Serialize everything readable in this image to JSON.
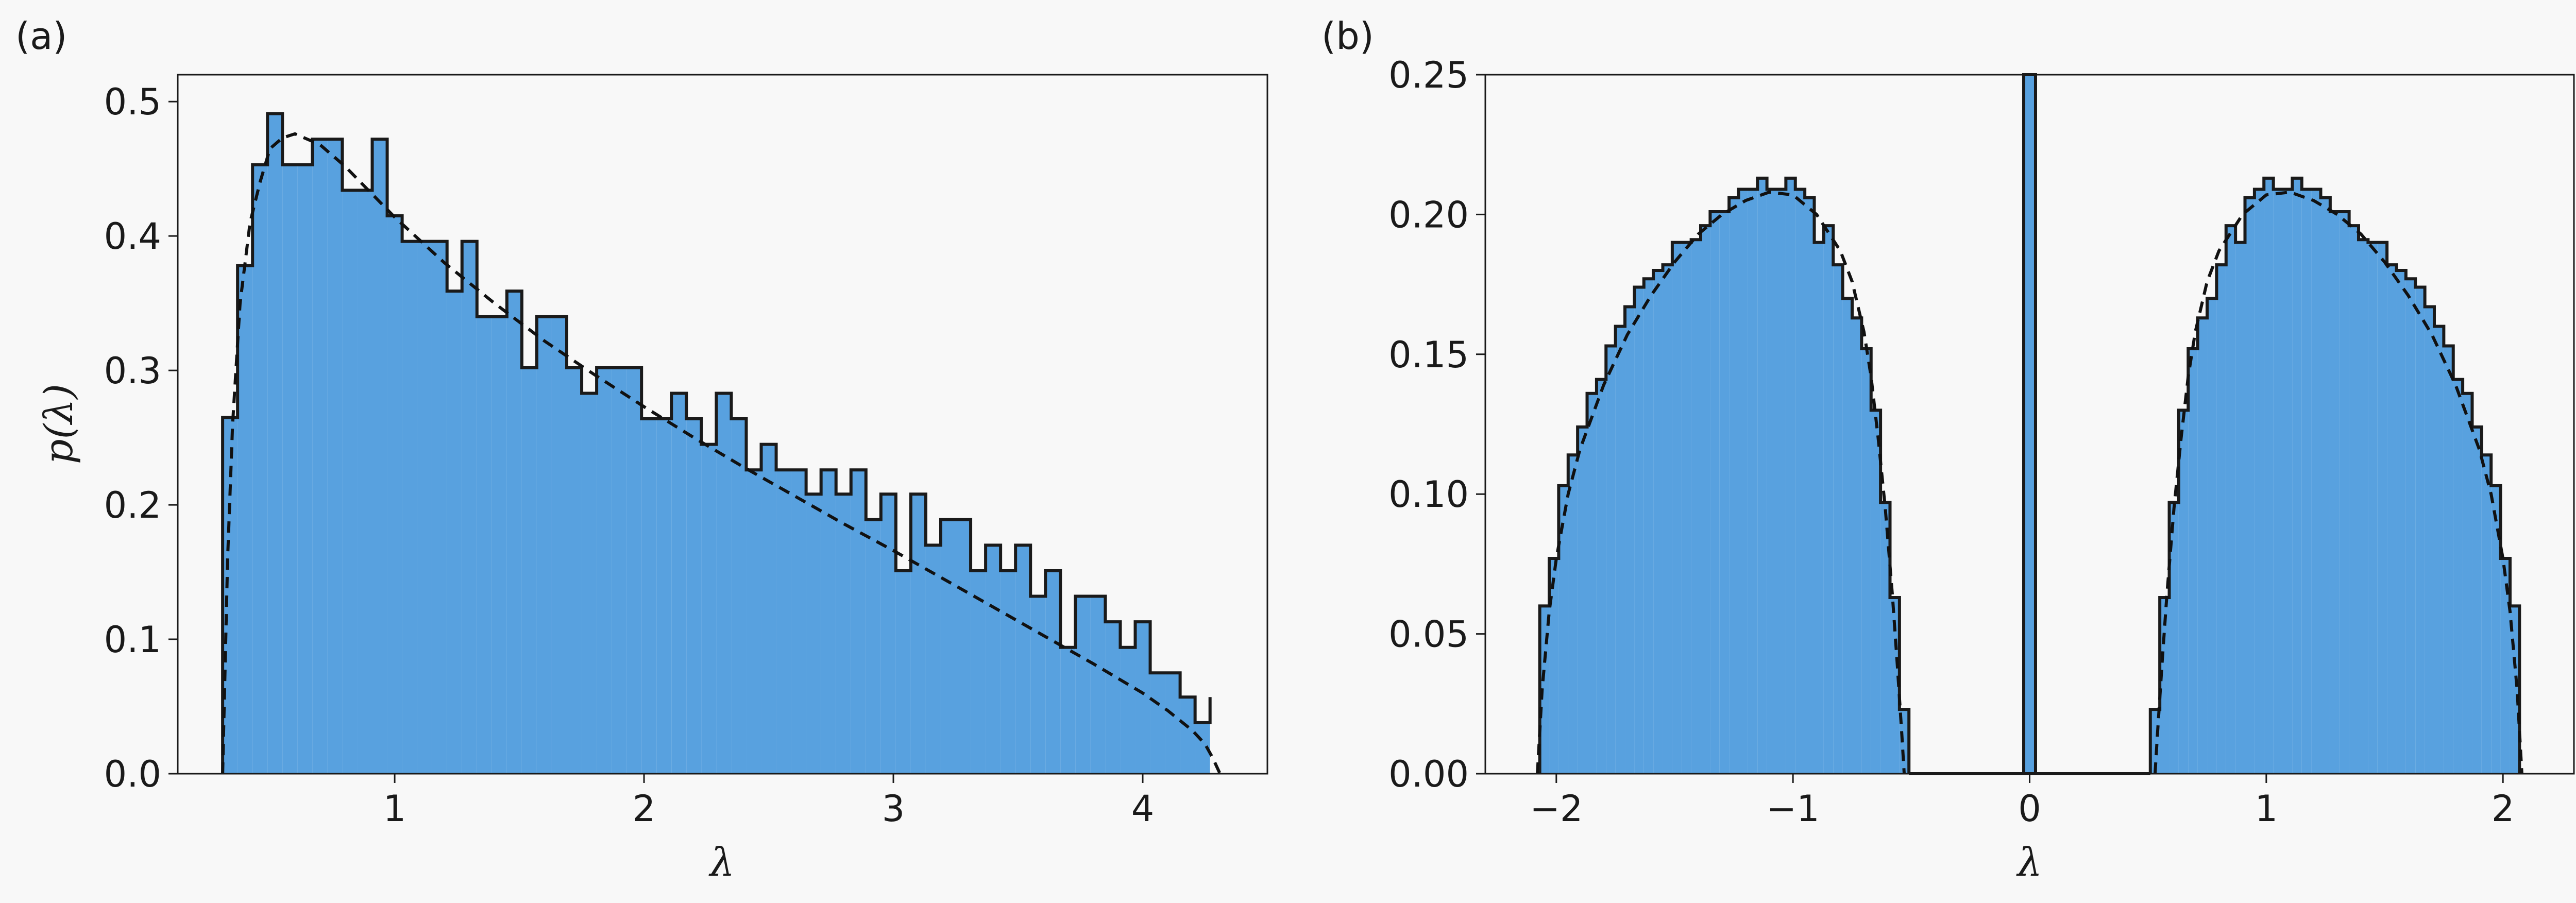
{
  "colors": {
    "bar_fill": "#58a1df",
    "bar_edge": "#1a1a1a",
    "fit_line": "#111111",
    "background": "#f8f8f8"
  },
  "chart_data": [
    {
      "panel_label": "(a)",
      "type": "histogram",
      "xlabel": "λ",
      "ylabel": "p(λ)",
      "xlim": [
        0.13,
        4.5
      ],
      "ylim": [
        0,
        0.52
      ],
      "xticks": [
        1,
        2,
        3,
        4
      ],
      "xtick_labels": [
        "1",
        "2",
        "3",
        "4"
      ],
      "yticks": [
        0,
        0.1,
        0.2,
        0.3,
        0.4,
        0.5
      ],
      "ytick_labels": [
        "0.0",
        "0.1",
        "0.2",
        "0.3",
        "0.4",
        "0.5"
      ],
      "grid": false,
      "bin_edges": [
        0.31,
        0.37,
        0.43,
        0.49,
        0.55,
        0.61,
        0.67,
        0.73,
        0.79,
        0.85,
        0.91,
        0.97,
        1.03,
        1.09,
        1.15,
        1.21,
        1.27,
        1.33,
        1.39,
        1.45,
        1.51,
        1.57,
        1.63,
        1.69,
        1.75,
        1.81,
        1.87,
        1.93,
        1.99,
        2.05,
        2.11,
        2.17,
        2.23,
        2.29,
        2.35,
        2.41,
        2.47,
        2.53,
        2.59,
        2.65,
        2.71,
        2.77,
        2.83,
        2.89,
        2.95,
        3.01,
        3.07,
        3.13,
        3.19,
        3.25,
        3.31,
        3.37,
        3.43,
        3.49,
        3.55,
        3.61,
        3.67,
        3.73,
        3.79,
        3.85,
        3.91,
        3.97,
        4.03,
        4.09,
        4.15,
        4.21,
        4.27
      ],
      "counts": [
        0.265,
        0.378,
        0.453,
        0.491,
        0.453,
        0.453,
        0.472,
        0.472,
        0.434,
        0.434,
        0.472,
        0.415,
        0.396,
        0.396,
        0.396,
        0.359,
        0.396,
        0.34,
        0.34,
        0.359,
        0.302,
        0.34,
        0.34,
        0.302,
        0.283,
        0.302,
        0.302,
        0.302,
        0.264,
        0.264,
        0.283,
        0.264,
        0.245,
        0.283,
        0.264,
        0.226,
        0.245,
        0.226,
        0.226,
        0.208,
        0.226,
        0.208,
        0.226,
        0.189,
        0.208,
        0.151,
        0.208,
        0.17,
        0.189,
        0.189,
        0.151,
        0.17,
        0.151,
        0.17,
        0.132,
        0.151,
        0.094,
        0.132,
        0.132,
        0.113,
        0.094,
        0.113,
        0.075,
        0.075,
        0.057,
        0.038,
        0.057
      ],
      "fit_curve": {
        "style": "dashed",
        "x": [
          0.31,
          0.33,
          0.35,
          0.38,
          0.42,
          0.46,
          0.5,
          0.55,
          0.6,
          0.7,
          0.8,
          0.9,
          1.0,
          1.2,
          1.4,
          1.6,
          1.8,
          2.0,
          2.2,
          2.4,
          2.6,
          2.8,
          3.0,
          3.2,
          3.4,
          3.6,
          3.8,
          4.0,
          4.1,
          4.2,
          4.25,
          4.28,
          4.3,
          4.31
        ],
        "y": [
          0.0,
          0.16,
          0.26,
          0.35,
          0.41,
          0.44,
          0.465,
          0.473,
          0.476,
          0.468,
          0.452,
          0.433,
          0.414,
          0.38,
          0.35,
          0.322,
          0.297,
          0.273,
          0.25,
          0.228,
          0.207,
          0.186,
          0.166,
          0.145,
          0.124,
          0.103,
          0.082,
          0.06,
          0.047,
          0.032,
          0.022,
          0.012,
          0.004,
          0.0
        ]
      }
    },
    {
      "panel_label": "(b)",
      "type": "histogram",
      "xlabel": "λ",
      "ylabel": "",
      "xlim": [
        -2.3,
        2.3
      ],
      "ylim": [
        0,
        0.25
      ],
      "xticks": [
        -2,
        -1,
        0,
        1,
        2
      ],
      "xtick_labels": [
        "−2",
        "−1",
        "0",
        "1",
        "2"
      ],
      "yticks": [
        0,
        0.05,
        0.1,
        0.15,
        0.2,
        0.25
      ],
      "ytick_labels": [
        "0.00",
        "0.05",
        "0.10",
        "0.15",
        "0.20",
        "0.25"
      ],
      "grid": false,
      "bin_edges_left": [
        -2.07,
        -2.03,
        -1.99,
        -1.95,
        -1.91,
        -1.87,
        -1.83,
        -1.79,
        -1.75,
        -1.71,
        -1.67,
        -1.63,
        -1.59,
        -1.55,
        -1.51,
        -1.47,
        -1.43,
        -1.39,
        -1.35,
        -1.31,
        -1.27,
        -1.23,
        -1.19,
        -1.15,
        -1.11,
        -1.07,
        -1.03,
        -0.99,
        -0.95,
        -0.91,
        -0.87,
        -0.83,
        -0.79,
        -0.75,
        -0.71,
        -0.67,
        -0.63,
        -0.59,
        -0.55,
        -0.51
      ],
      "counts_left": [
        0.06,
        0.077,
        0.103,
        0.114,
        0.124,
        0.136,
        0.141,
        0.153,
        0.16,
        0.167,
        0.174,
        0.177,
        0.18,
        0.182,
        0.19,
        0.19,
        0.191,
        0.196,
        0.201,
        0.201,
        0.206,
        0.209,
        0.209,
        0.213,
        0.209,
        0.209,
        0.213,
        0.209,
        0.206,
        0.19,
        0.196,
        0.182,
        0.17,
        0.163,
        0.152,
        0.13,
        0.097,
        0.063,
        0.023
      ],
      "bin_edges_right": [
        0.51,
        0.55,
        0.59,
        0.63,
        0.67,
        0.71,
        0.75,
        0.79,
        0.83,
        0.87,
        0.91,
        0.95,
        0.99,
        1.03,
        1.07,
        1.11,
        1.15,
        1.19,
        1.23,
        1.27,
        1.31,
        1.35,
        1.39,
        1.43,
        1.47,
        1.51,
        1.55,
        1.59,
        1.63,
        1.67,
        1.71,
        1.75,
        1.79,
        1.83,
        1.87,
        1.91,
        1.95,
        1.99,
        2.03,
        2.07
      ],
      "counts_right": [
        0.023,
        0.063,
        0.097,
        0.13,
        0.152,
        0.163,
        0.17,
        0.182,
        0.196,
        0.19,
        0.206,
        0.209,
        0.213,
        0.209,
        0.209,
        0.213,
        0.209,
        0.209,
        0.206,
        0.201,
        0.201,
        0.196,
        0.191,
        0.19,
        0.19,
        0.182,
        0.18,
        0.177,
        0.174,
        0.167,
        0.16,
        0.153,
        0.141,
        0.136,
        0.124,
        0.114,
        0.103,
        0.077,
        0.06
      ],
      "center_spike": {
        "x0": -0.025,
        "x1": 0.025,
        "value": 0.25
      },
      "fit_curve": {
        "style": "dashed",
        "x_left": [
          -2.08,
          -2.06,
          -2.03,
          -2.0,
          -1.95,
          -1.9,
          -1.8,
          -1.7,
          -1.6,
          -1.5,
          -1.4,
          -1.3,
          -1.2,
          -1.1,
          -1.0,
          -0.9,
          -0.8,
          -0.75,
          -0.7,
          -0.67,
          -0.64,
          -0.61,
          -0.58,
          -0.56,
          -0.54,
          -0.53
        ],
        "y_left": [
          0.0,
          0.03,
          0.058,
          0.077,
          0.1,
          0.116,
          0.139,
          0.157,
          0.171,
          0.183,
          0.193,
          0.2,
          0.205,
          0.208,
          0.207,
          0.2,
          0.187,
          0.176,
          0.158,
          0.142,
          0.12,
          0.095,
          0.064,
          0.04,
          0.014,
          0.0
        ],
        "x_right": [
          0.53,
          0.54,
          0.56,
          0.58,
          0.61,
          0.64,
          0.67,
          0.7,
          0.75,
          0.8,
          0.9,
          1.0,
          1.1,
          1.2,
          1.3,
          1.4,
          1.5,
          1.6,
          1.7,
          1.8,
          1.9,
          1.95,
          2.0,
          2.03,
          2.06,
          2.08
        ],
        "y_right": [
          0.0,
          0.014,
          0.04,
          0.064,
          0.095,
          0.12,
          0.142,
          0.158,
          0.176,
          0.187,
          0.2,
          0.207,
          0.208,
          0.205,
          0.2,
          0.193,
          0.183,
          0.171,
          0.157,
          0.139,
          0.116,
          0.1,
          0.077,
          0.058,
          0.03,
          0.0
        ]
      }
    }
  ]
}
